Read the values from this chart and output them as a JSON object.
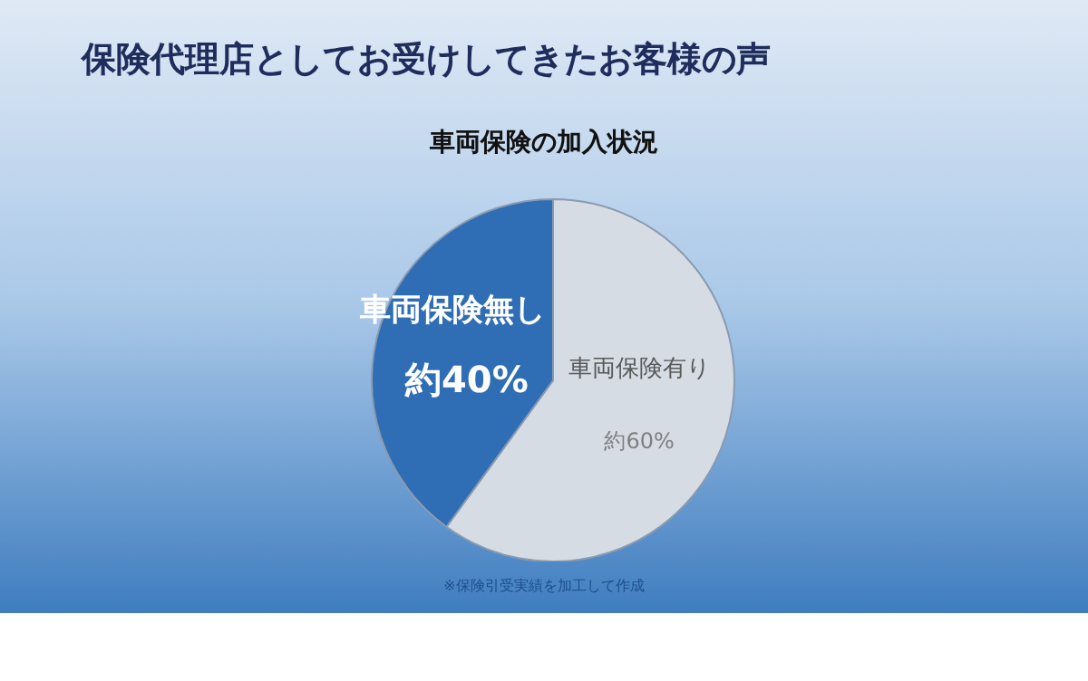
{
  "chart_data": {
    "type": "pie",
    "title": "保険代理店としてお受けしてきたお客様の声",
    "subtitle": "車両保険の加入状況",
    "categories": [
      "車両保険有り",
      "車両保険無し"
    ],
    "values": [
      60,
      40
    ],
    "colors": [
      "#d6dce4",
      "#2f6db4"
    ],
    "value_labels": [
      "約60%",
      "約40%"
    ],
    "annotations": [
      "※保険引受実績を加工して作成"
    ]
  }
}
